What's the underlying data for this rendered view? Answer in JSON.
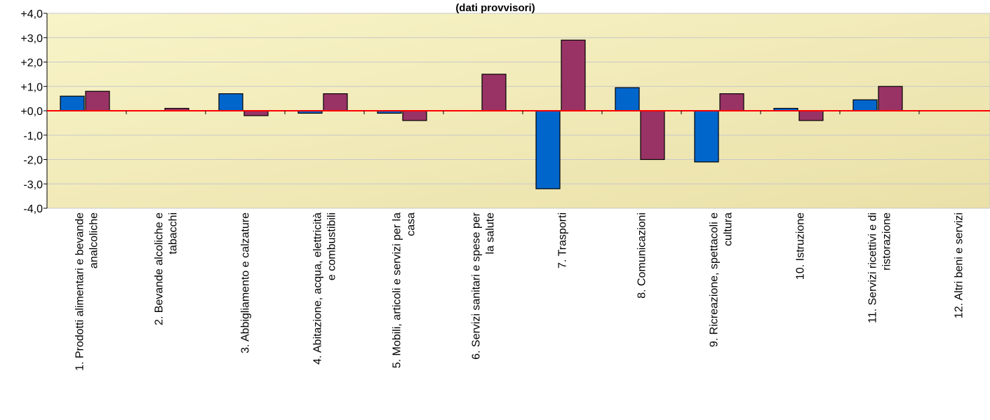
{
  "chart_data": {
    "type": "bar",
    "title": "(dati provvisori)",
    "categories": [
      [
        "1. Prodotti alimentari e bevande",
        "analcoliche"
      ],
      [
        "2. Bevande alcoliche e",
        "tabacchi"
      ],
      [
        "3. Abbigliamento e calzature"
      ],
      [
        "4. Abitazione, acqua, elettricità",
        "e combustibili"
      ],
      [
        "5. Mobili, articoli e servizi per la",
        "casa"
      ],
      [
        "6. Servizi sanitari e spese per",
        "la salute"
      ],
      [
        "7. Trasporti"
      ],
      [
        "8. Comunicazioni"
      ],
      [
        "9. Ricreazione, spettacoli e",
        "cultura"
      ],
      [
        "10. Istruzione"
      ],
      [
        "11. Servizi ricettivi e di",
        "ristorazione"
      ],
      [
        "12. Altri beni e servizi"
      ]
    ],
    "series": [
      {
        "values": [
          0.6,
          0.0,
          0.7,
          -0.1,
          -0.1,
          0.0,
          -3.2,
          0.95,
          -2.1,
          0.1,
          0.45,
          0.0
        ]
      },
      {
        "values": [
          0.8,
          0.1,
          -0.2,
          0.7,
          -0.4,
          1.5,
          2.9,
          -2.0,
          0.7,
          -0.4,
          1.0,
          0.0
        ]
      }
    ],
    "yticks": [
      "+4,0",
      "+3,0",
      "+2,0",
      "+1,0",
      "+0,0",
      "-1,0",
      "-2,0",
      "-3,0",
      "-4,0"
    ],
    "ylim": [
      -4,
      4
    ],
    "grid": true,
    "colors": {
      "series": [
        "#0066CC",
        "#993366"
      ],
      "zero_line": "#FF0000",
      "plot_bg_top": "#F8F4C8",
      "plot_bg_bottom": "#EAE0A8",
      "grid": "#C8C8C8"
    }
  }
}
